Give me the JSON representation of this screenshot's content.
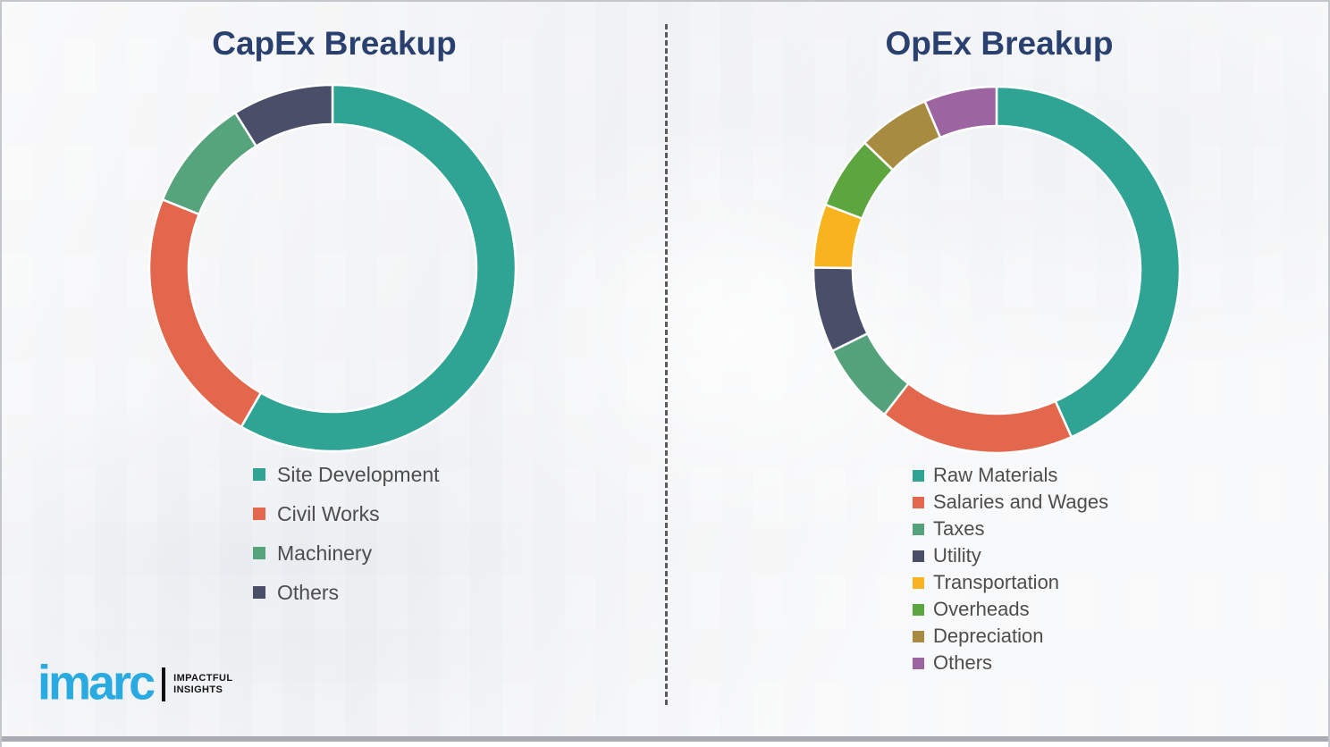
{
  "theme": {
    "title_color": "#2A406F",
    "legend_text_color": "#4D4D4D",
    "separator_color": "#FFFFFF",
    "divider_color": "#5B5B5B",
    "background_color": "#F2F3F5"
  },
  "chart_data": [
    {
      "type": "pie",
      "subtype": "donut",
      "title": "CapEx Breakup",
      "legend_position": "below-left",
      "segments": [
        {
          "label": "Site Development",
          "value": 58.3,
          "color": "#2FA495"
        },
        {
          "label": "Civil Works",
          "value": 22.8,
          "color": "#E2674C"
        },
        {
          "label": "Machinery",
          "value": 10.0,
          "color": "#56A47C"
        },
        {
          "label": "Others",
          "value": 8.9,
          "color": "#494F68"
        }
      ]
    },
    {
      "type": "pie",
      "subtype": "donut",
      "title": "OpEx Breakup",
      "legend_position": "below-left",
      "segments": [
        {
          "label": "Raw Materials",
          "value": 43.3,
          "color": "#2FA495"
        },
        {
          "label": "Salaries and Wages",
          "value": 17.2,
          "color": "#E2674C"
        },
        {
          "label": "Taxes",
          "value": 7.2,
          "color": "#53A27B"
        },
        {
          "label": "Utility",
          "value": 7.5,
          "color": "#494F68"
        },
        {
          "label": "Transportation",
          "value": 5.6,
          "color": "#F8B41E"
        },
        {
          "label": "Overheads",
          "value": 6.4,
          "color": "#5CA53F"
        },
        {
          "label": "Depreciation",
          "value": 6.4,
          "color": "#A78B41"
        },
        {
          "label": "Others",
          "value": 6.4,
          "color": "#9C64A1"
        }
      ]
    }
  ],
  "logo": {
    "brand": "imarc",
    "brand_color": "#29ABE2",
    "tagline_line1": "IMPACTFUL",
    "tagline_line2": "INSIGHTS"
  }
}
